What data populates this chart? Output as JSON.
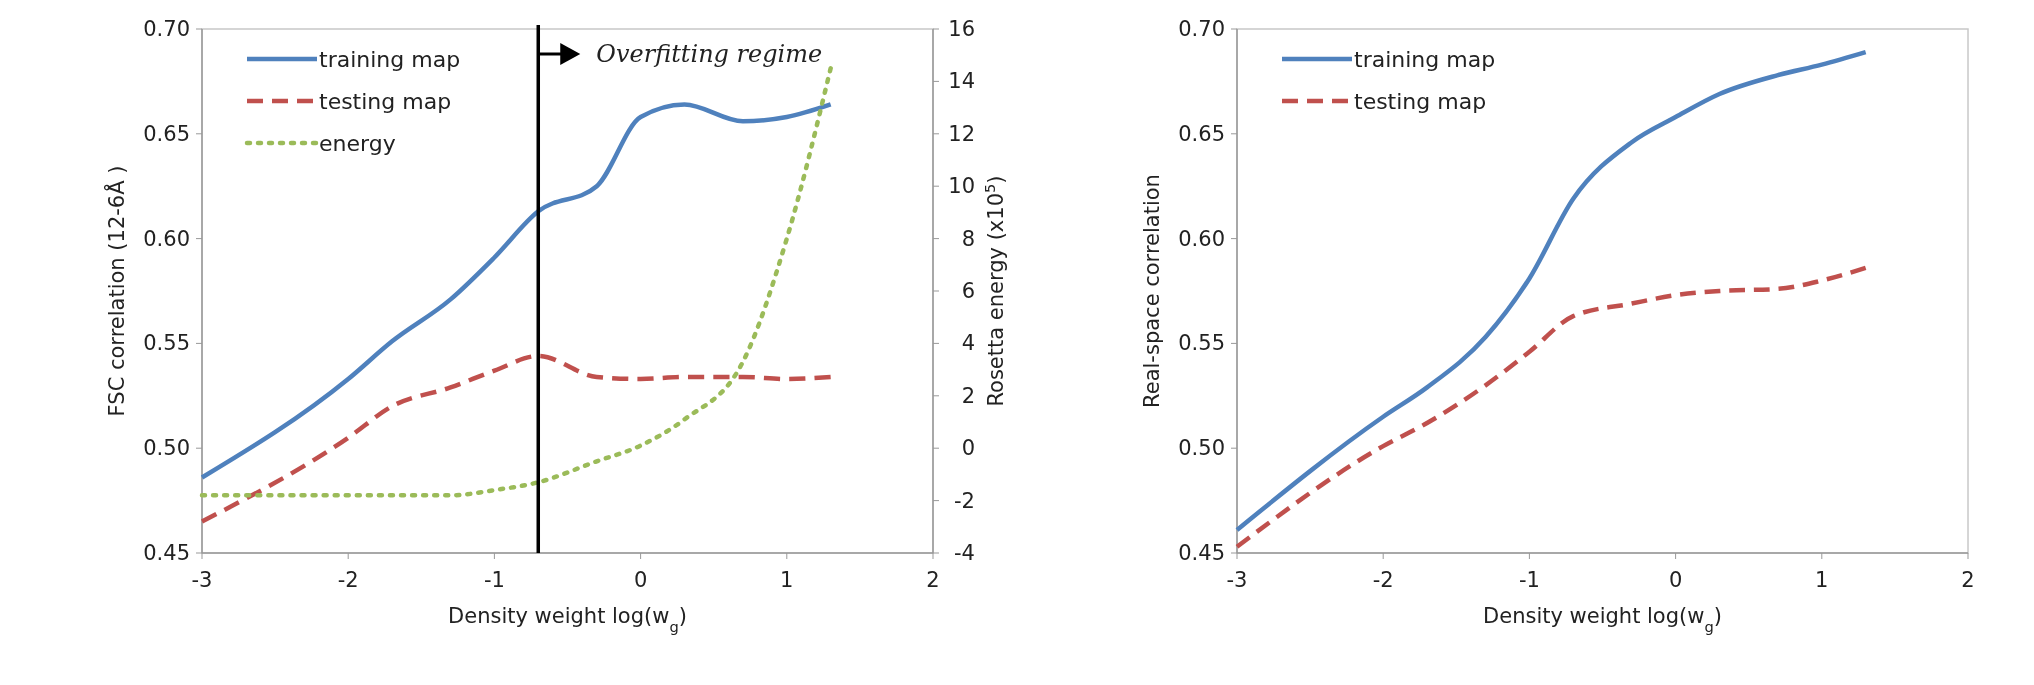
{
  "chart_data": [
    {
      "type": "line",
      "xlabel": "Density weight log(w$_{g}$)",
      "ylabel": "FSC correlation (12-6Å )",
      "y2label": "Rosetta energy (x10$^{5}$)",
      "x": [
        -3,
        -2,
        -1.7,
        -1.3,
        -1,
        -0.7,
        -0.3,
        0,
        0.3,
        0.7,
        1,
        1.3
      ],
      "series": [
        {
          "name": "training map",
          "color": "#4f81bd",
          "line_style": "solid",
          "values": [
            0.486,
            0.533,
            0.551,
            0.571,
            0.591,
            0.613,
            0.625,
            0.658,
            0.664,
            0.656,
            0.658,
            0.664
          ]
        },
        {
          "name": "testing map",
          "color": "#c0504d",
          "line_style": "dashed",
          "values": [
            0.465,
            0.505,
            0.52,
            0.529,
            0.537,
            0.544,
            0.534,
            0.533,
            0.534,
            0.534,
            0.533,
            0.534
          ]
        },
        {
          "name": "energy",
          "color": "#9bbb59",
          "line_style": "dotted",
          "axis": "y2",
          "values": [
            -1.8,
            -1.8,
            -1.8,
            -1.8,
            -1.6,
            -1.3,
            -0.5,
            0.1,
            1.1,
            3.3,
            8.0,
            14.5
          ]
        }
      ],
      "xlim": [
        -3,
        2
      ],
      "xticks": [
        -3,
        -2,
        -1,
        0,
        1,
        2
      ],
      "ylim": [
        0.45,
        0.7
      ],
      "yticks": [
        {
          "value": 0.45,
          "label": "0.45"
        },
        {
          "value": 0.5,
          "label": "0.50"
        },
        {
          "value": 0.55,
          "label": "0.55"
        },
        {
          "value": 0.6,
          "label": "0.60"
        },
        {
          "value": 0.65,
          "label": "0.65"
        },
        {
          "value": 0.7,
          "label": "0.70"
        }
      ],
      "y2lim": [
        -4,
        16
      ],
      "y2ticks": [
        -4,
        -2,
        0,
        2,
        4,
        6,
        8,
        10,
        12,
        14,
        16
      ],
      "ref_lines": [
        {
          "axis": "x",
          "value": -0.7,
          "label": "Overfitting regime",
          "color": "#000000"
        }
      ],
      "grid": false,
      "legend": "top left",
      "marker": "none"
    },
    {
      "type": "line",
      "xlabel": "Density weight log(w$_{g}$)",
      "ylabel": "Real-space correlation",
      "x": [
        -3,
        -2,
        -1.7,
        -1.3,
        -1,
        -0.7,
        -0.3,
        0,
        0.3,
        0.7,
        1,
        1.3
      ],
      "series": [
        {
          "name": "training map",
          "color": "#4f81bd",
          "line_style": "solid",
          "values": [
            0.461,
            0.515,
            0.529,
            0.553,
            0.581,
            0.619,
            0.646,
            0.658,
            0.669,
            0.678,
            0.683,
            0.689
          ]
        },
        {
          "name": "testing map",
          "color": "#c0504d",
          "line_style": "dashed",
          "values": [
            0.453,
            0.501,
            0.512,
            0.53,
            0.546,
            0.563,
            0.569,
            0.573,
            0.575,
            0.576,
            0.58,
            0.586
          ]
        }
      ],
      "xlim": [
        -3,
        2
      ],
      "xticks": [
        -3,
        -2,
        -1,
        0,
        1,
        2
      ],
      "ylim": [
        0.45,
        0.7
      ],
      "yticks": [
        {
          "value": 0.45,
          "label": "0.45"
        },
        {
          "value": 0.5,
          "label": "0.50"
        },
        {
          "value": 0.55,
          "label": "0.55"
        },
        {
          "value": 0.6,
          "label": "0.60"
        },
        {
          "value": 0.65,
          "label": "0.65"
        },
        {
          "value": 0.7,
          "label": "0.70"
        }
      ],
      "grid": false,
      "legend": "top left",
      "marker": "none"
    }
  ]
}
